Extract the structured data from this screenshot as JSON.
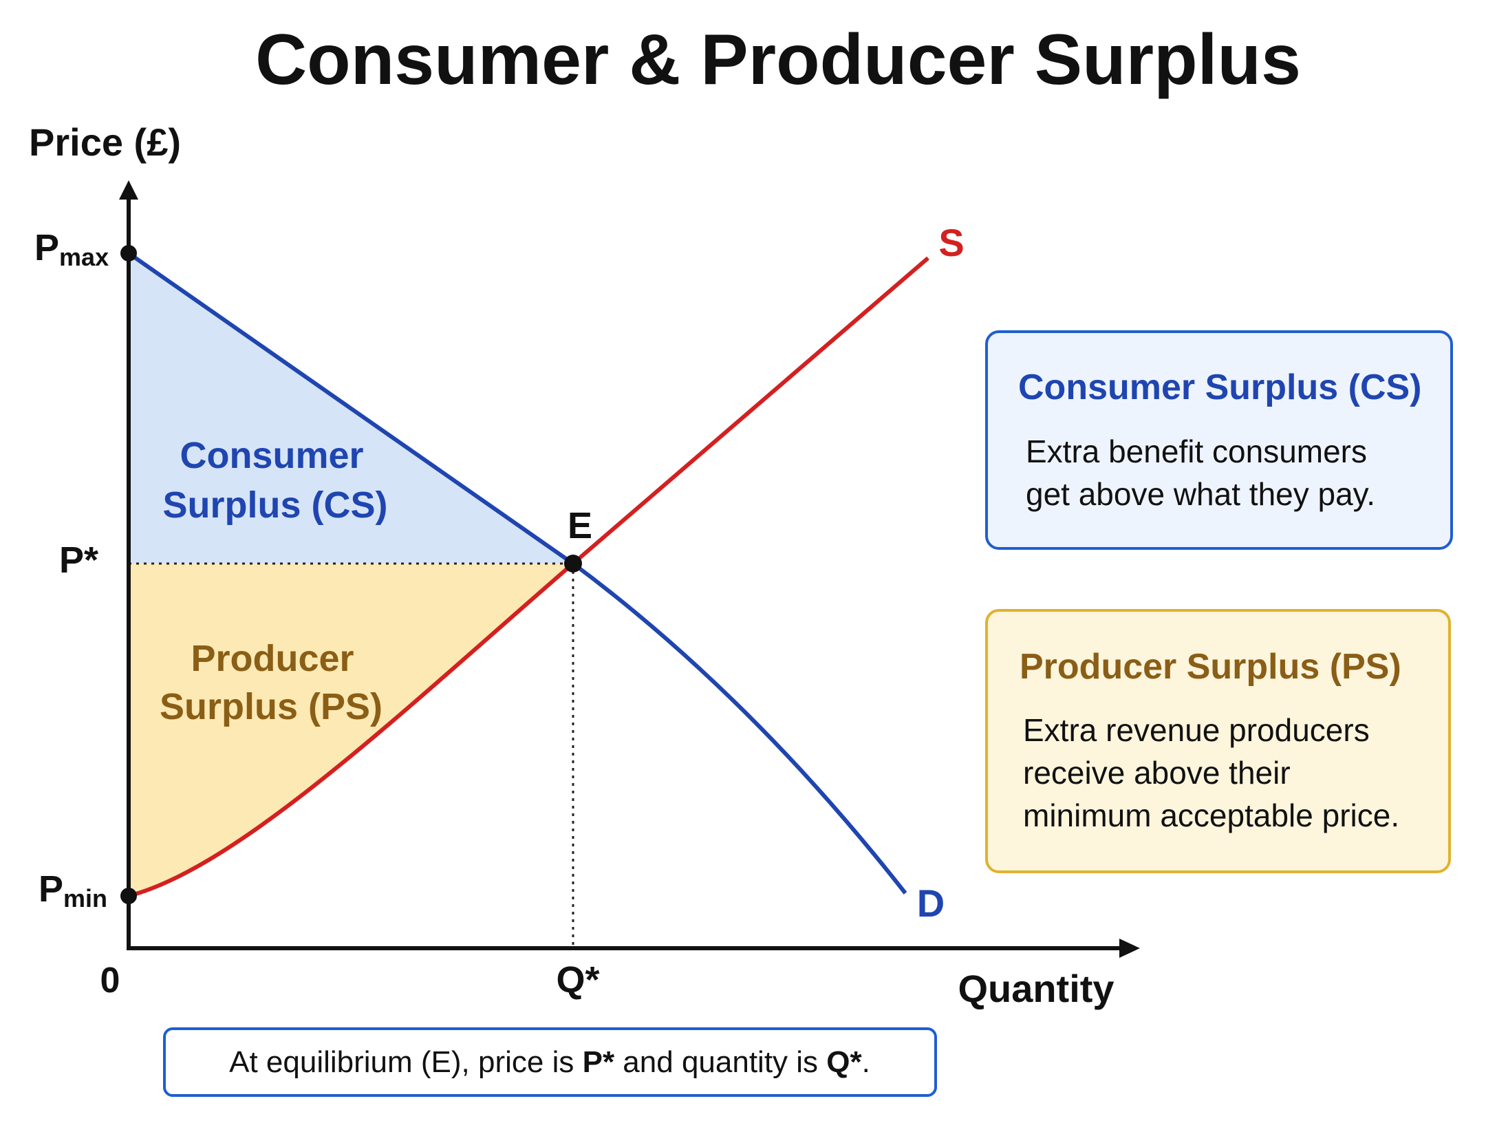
{
  "title": "Consumer & Producer Surplus",
  "axes": {
    "y_label": "Price (£)",
    "x_label": "Quantity",
    "origin": "0",
    "p_max": {
      "main": "P",
      "sub": "max"
    },
    "p_star": "P*",
    "p_min": {
      "main": "P",
      "sub": "min"
    },
    "q_star": "Q*"
  },
  "curves": {
    "supply": "S",
    "demand": "D",
    "equilibrium": "E"
  },
  "areas": {
    "consumer": [
      "Consumer",
      "Surplus (CS)"
    ],
    "producer": [
      "Producer",
      "Surplus (PS)"
    ]
  },
  "boxes": [
    {
      "title": "Consumer Surplus (CS)",
      "lines": [
        "Extra benefit consumers",
        "get above what they pay."
      ]
    },
    {
      "title": "Producer Surplus (PS)",
      "lines": [
        "Extra revenue producers",
        "receive above their",
        "minimum acceptable price."
      ]
    }
  ],
  "footnote": [
    "At equilibrium (E), price is ",
    "P*",
    " and quantity is ",
    "Q*",
    "."
  ]
}
